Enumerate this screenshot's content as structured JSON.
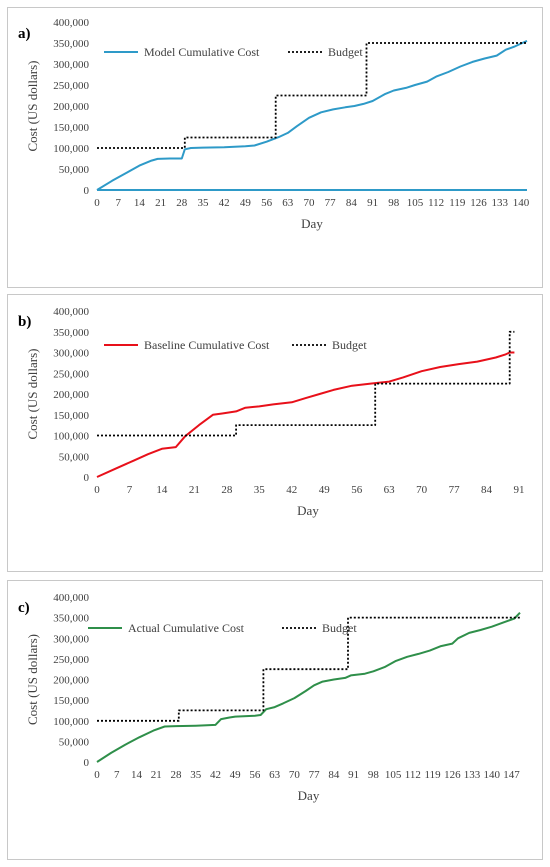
{
  "chart_data": [
    {
      "panel_label": "a)",
      "type": "line",
      "xlabel": "Day",
      "ylabel": "Cost (US dollars)",
      "xlim": [
        0,
        142
      ],
      "ylim": [
        0,
        400000
      ],
      "xticks": [
        0,
        7,
        14,
        21,
        28,
        35,
        42,
        49,
        56,
        63,
        70,
        77,
        84,
        91,
        98,
        105,
        112,
        119,
        126,
        133,
        140
      ],
      "yticks": [
        0,
        50000,
        100000,
        150000,
        200000,
        250000,
        300000,
        350000,
        400000
      ],
      "ytick_labels": [
        "0",
        "50,000",
        "100,000",
        "150,000",
        "200,000",
        "250,000",
        "300,000",
        "350,000",
        "400,000"
      ],
      "legend": {
        "position": "top",
        "entries": [
          "Model Cumulative Cost",
          "Budget"
        ]
      },
      "grid": false,
      "series": [
        {
          "name": "Model Cumulative Cost",
          "color": "#2e9ac8",
          "style": "solid",
          "x": [
            0,
            5,
            10,
            14,
            18,
            20,
            24,
            28,
            29,
            31,
            35,
            42,
            49,
            52,
            56,
            60,
            63,
            66,
            70,
            74,
            78,
            82,
            85,
            88,
            91,
            95,
            98,
            102,
            105,
            109,
            112,
            116,
            120,
            124,
            128,
            132,
            135,
            138,
            142
          ],
          "y": [
            0,
            22000,
            42000,
            58000,
            70000,
            74000,
            75000,
            75000,
            97000,
            100000,
            101000,
            102000,
            104000,
            106000,
            115000,
            126000,
            136000,
            152000,
            172000,
            185000,
            192000,
            197000,
            200000,
            205000,
            212000,
            228000,
            237000,
            243000,
            250000,
            258000,
            270000,
            281000,
            294000,
            305000,
            313000,
            320000,
            334000,
            342000,
            355000
          ]
        },
        {
          "name": "Budget",
          "color": "#000000",
          "style": "dotted",
          "x": [
            0,
            29,
            29,
            59,
            59,
            89,
            89,
            142
          ],
          "y": [
            100000,
            100000,
            125000,
            125000,
            225000,
            225000,
            350000,
            350000
          ]
        },
        {
          "name": "",
          "color": "#2e9ac8",
          "style": "solid",
          "x": [
            0,
            142
          ],
          "y": [
            0,
            0
          ]
        }
      ]
    },
    {
      "panel_label": "b)",
      "type": "line",
      "xlabel": "Day",
      "ylabel": "Cost (US dollars)",
      "xlim": [
        0,
        91
      ],
      "ylim": [
        0,
        400000
      ],
      "xticks": [
        0,
        7,
        14,
        21,
        28,
        35,
        42,
        49,
        56,
        63,
        70,
        77,
        84,
        91
      ],
      "yticks": [
        0,
        50000,
        100000,
        150000,
        200000,
        250000,
        300000,
        350000,
        400000
      ],
      "ytick_labels": [
        "0",
        "50,000",
        "100,000",
        "150,000",
        "200,000",
        "250,000",
        "300,000",
        "350,000",
        "400,000"
      ],
      "legend": {
        "position": "top",
        "entries": [
          "Baseline Cumulative Cost",
          "Budget"
        ]
      },
      "grid": false,
      "series": [
        {
          "name": "Baseline Cumulative Cost",
          "color": "#e8101a",
          "style": "solid",
          "x": [
            0,
            4,
            8,
            11,
            14,
            17,
            19,
            22,
            25,
            27,
            30,
            32,
            35,
            38,
            42,
            45,
            48,
            51,
            55,
            59,
            63,
            66,
            70,
            74,
            78,
            82,
            86,
            88,
            89,
            90
          ],
          "y": [
            0,
            20000,
            40000,
            55000,
            68000,
            72000,
            98000,
            125000,
            150000,
            153000,
            158000,
            167000,
            170000,
            175000,
            180000,
            190000,
            200000,
            210000,
            220000,
            225000,
            230000,
            240000,
            255000,
            265000,
            272000,
            278000,
            288000,
            295000,
            300000,
            300000
          ]
        },
        {
          "name": "Budget",
          "color": "#000000",
          "style": "dotted",
          "x": [
            0,
            30,
            30,
            60,
            60,
            89,
            89,
            90
          ],
          "y": [
            100000,
            100000,
            125000,
            125000,
            225000,
            225000,
            350000,
            350000
          ]
        }
      ]
    },
    {
      "panel_label": "c)",
      "type": "line",
      "xlabel": "Day",
      "ylabel": "Cost (US dollars)",
      "xlim": [
        0,
        150
      ],
      "ylim": [
        0,
        400000
      ],
      "xticks": [
        0,
        7,
        14,
        21,
        28,
        35,
        42,
        49,
        56,
        63,
        70,
        77,
        84,
        91,
        98,
        105,
        112,
        119,
        126,
        133,
        140,
        147
      ],
      "yticks": [
        0,
        50000,
        100000,
        150000,
        200000,
        250000,
        300000,
        350000,
        400000
      ],
      "ytick_labels": [
        "0",
        "50,000",
        "100,000",
        "150,000",
        "200,000",
        "250,000",
        "300,000",
        "350,000",
        "400,000"
      ],
      "legend": {
        "position": "top",
        "entries": [
          "Actual Cumulative Cost",
          "Budget"
        ]
      },
      "grid": false,
      "series": [
        {
          "name": "Actual Cumulative Cost",
          "color": "#2f8f4a",
          "style": "solid",
          "x": [
            0,
            5,
            10,
            15,
            20,
            24,
            28,
            35,
            42,
            44,
            47,
            49,
            52,
            56,
            58,
            60,
            63,
            66,
            70,
            74,
            77,
            80,
            84,
            88,
            90,
            95,
            98,
            102,
            106,
            110,
            114,
            118,
            122,
            126,
            128,
            132,
            136,
            140,
            144,
            148,
            150
          ],
          "y": [
            0,
            22000,
            42000,
            60000,
            76000,
            86000,
            87000,
            88000,
            90000,
            104000,
            108000,
            110000,
            111000,
            112000,
            114000,
            128000,
            133000,
            142000,
            155000,
            172000,
            186000,
            195000,
            200000,
            204000,
            210000,
            214000,
            220000,
            230000,
            245000,
            255000,
            262000,
            270000,
            281000,
            287000,
            300000,
            313000,
            320000,
            328000,
            338000,
            348000,
            362000
          ]
        },
        {
          "name": "Budget",
          "color": "#000000",
          "style": "dotted",
          "x": [
            0,
            29,
            29,
            59,
            59,
            89,
            89,
            150
          ],
          "y": [
            100000,
            100000,
            125000,
            125000,
            225000,
            225000,
            350000,
            350000
          ]
        }
      ]
    }
  ]
}
